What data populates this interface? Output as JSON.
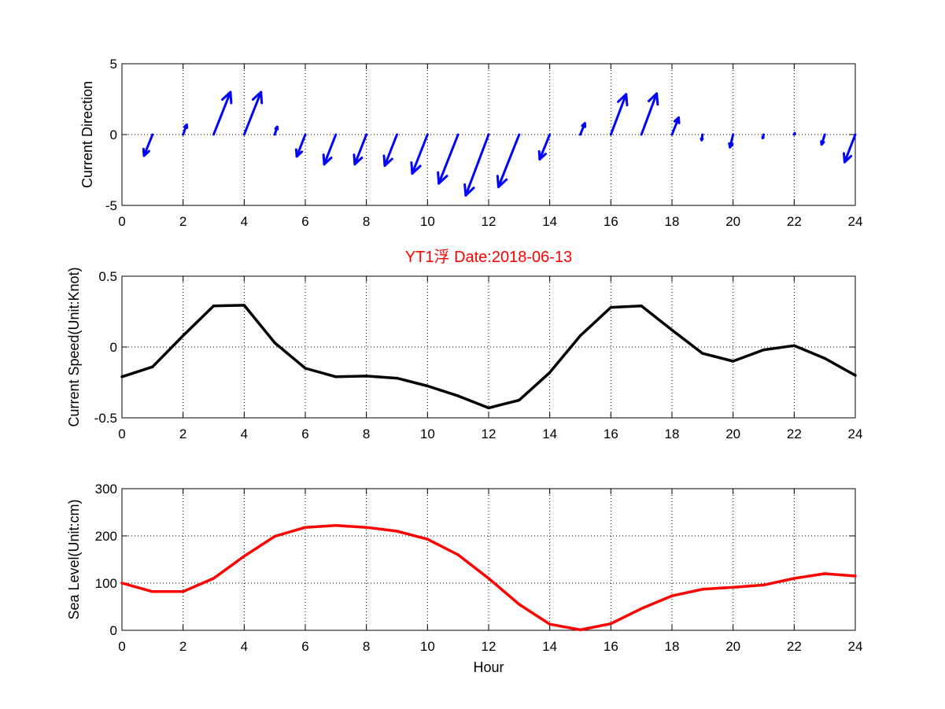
{
  "chart_data": [
    {
      "type": "quiver",
      "title": "",
      "xlabel": "",
      "ylabel": "Current Direction",
      "xlim": [
        0,
        24
      ],
      "ylim": [
        -5,
        5
      ],
      "xticks": [
        "0",
        "2",
        "4",
        "6",
        "8",
        "10",
        "12",
        "14",
        "16",
        "18",
        "20",
        "22",
        "24"
      ],
      "yticks": [
        "5",
        "0",
        "-5"
      ],
      "grid": true,
      "color": "#0000ff",
      "series": [
        {
          "values": [
            {
              "x": 1,
              "u": -0.28,
              "v": -1.5
            },
            {
              "x": 2,
              "u": 0.12,
              "v": 0.7
            },
            {
              "x": 3,
              "u": 0.55,
              "v": 3.0
            },
            {
              "x": 4,
              "u": 0.55,
              "v": 3.0
            },
            {
              "x": 5,
              "u": 0.08,
              "v": 0.55
            },
            {
              "x": 6,
              "u": -0.28,
              "v": -1.55
            },
            {
              "x": 7,
              "u": -0.38,
              "v": -2.1
            },
            {
              "x": 8,
              "u": -0.38,
              "v": -2.1
            },
            {
              "x": 9,
              "u": -0.4,
              "v": -2.2
            },
            {
              "x": 10,
              "u": -0.5,
              "v": -2.75
            },
            {
              "x": 11,
              "u": -0.63,
              "v": -3.45
            },
            {
              "x": 12,
              "u": -0.75,
              "v": -4.3
            },
            {
              "x": 13,
              "u": -0.68,
              "v": -3.7
            },
            {
              "x": 14,
              "u": -0.33,
              "v": -1.75
            },
            {
              "x": 15,
              "u": 0.15,
              "v": 0.8
            },
            {
              "x": 16,
              "u": 0.5,
              "v": 2.85
            },
            {
              "x": 17,
              "u": 0.5,
              "v": 2.9
            },
            {
              "x": 18,
              "u": 0.22,
              "v": 1.2
            },
            {
              "x": 19,
              "u": -0.03,
              "v": -0.4
            },
            {
              "x": 20,
              "u": -0.1,
              "v": -0.9
            },
            {
              "x": 21,
              "u": -0.03,
              "v": -0.25
            },
            {
              "x": 22,
              "u": 0.02,
              "v": 0.1
            },
            {
              "x": 23,
              "u": -0.1,
              "v": -0.7
            },
            {
              "x": 24,
              "u": -0.35,
              "v": -1.95
            }
          ]
        }
      ]
    },
    {
      "type": "line",
      "title": "YT1浮    Date:2018-06-13",
      "title_color": "#ff0000",
      "xlabel": "",
      "ylabel": "Current Speed(Unit:Knot)",
      "xlim": [
        0,
        24
      ],
      "ylim": [
        -0.5,
        0.5
      ],
      "xticks": [
        "0",
        "2",
        "4",
        "6",
        "8",
        "10",
        "12",
        "14",
        "16",
        "18",
        "20",
        "22",
        "24"
      ],
      "yticks": [
        "0.5",
        "0",
        "-0.5"
      ],
      "grid": true,
      "color": "#000000",
      "x": [
        0,
        1,
        2,
        3,
        4,
        5,
        6,
        7,
        8,
        9,
        10,
        11,
        12,
        13,
        14,
        15,
        16,
        17,
        18,
        19,
        20,
        21,
        22,
        23,
        24
      ],
      "series": [
        {
          "values": [
            -0.21,
            -0.14,
            0.08,
            0.29,
            0.295,
            0.03,
            -0.15,
            -0.21,
            -0.205,
            -0.22,
            -0.275,
            -0.345,
            -0.43,
            -0.375,
            -0.18,
            0.08,
            0.28,
            0.29,
            0.12,
            -0.045,
            -0.1,
            -0.02,
            0.01,
            -0.08,
            -0.2
          ]
        }
      ]
    },
    {
      "type": "line",
      "title": "",
      "xlabel": "Hour",
      "ylabel": "Sea Level(Unit:cm)",
      "xlim": [
        0,
        24
      ],
      "ylim": [
        0,
        300
      ],
      "xticks": [
        "0",
        "2",
        "4",
        "6",
        "8",
        "10",
        "12",
        "14",
        "16",
        "18",
        "20",
        "22",
        "24"
      ],
      "yticks": [
        "300",
        "200",
        "100",
        "0"
      ],
      "grid": true,
      "color": "#ff0000",
      "x": [
        0,
        1,
        2,
        3,
        4,
        5,
        6,
        7,
        8,
        9,
        10,
        11,
        12,
        13,
        14,
        15,
        16,
        17,
        18,
        19,
        20,
        21,
        22,
        23,
        24
      ],
      "series": [
        {
          "values": [
            100,
            82,
            82,
            110,
            157,
            199,
            218,
            222,
            218,
            210,
            193,
            160,
            110,
            55,
            13,
            1,
            14,
            46,
            73,
            87,
            91,
            96,
            110,
            120,
            115
          ]
        }
      ]
    }
  ]
}
